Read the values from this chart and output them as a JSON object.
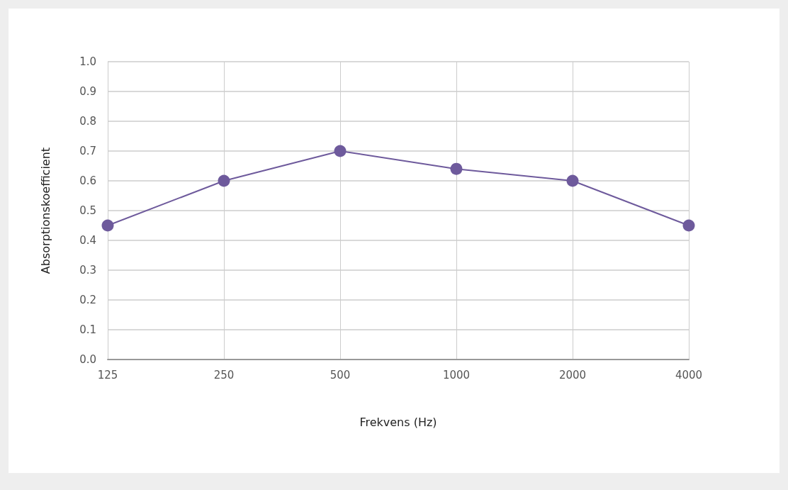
{
  "chart_data": {
    "type": "line",
    "xlabel": "Frekvens (Hz)",
    "ylabel": "Absorptionskoefficient",
    "categories": [
      "125",
      "250",
      "500",
      "1000",
      "2000",
      "4000"
    ],
    "series": [
      {
        "color": "#6e5a9c",
        "values": [
          0.45,
          0.6,
          0.7,
          0.64,
          0.6,
          0.45
        ]
      }
    ],
    "ylim": [
      0,
      1
    ],
    "yticks": [
      {
        "value": 0,
        "label": "0.0"
      },
      0.1,
      0.2,
      0.3,
      0.4,
      0.5,
      0.6,
      0.7,
      0.8,
      0.9,
      {
        "value": 1,
        "label": "1.0"
      }
    ],
    "grid": true,
    "marker": "circle",
    "line_style": "solid"
  }
}
